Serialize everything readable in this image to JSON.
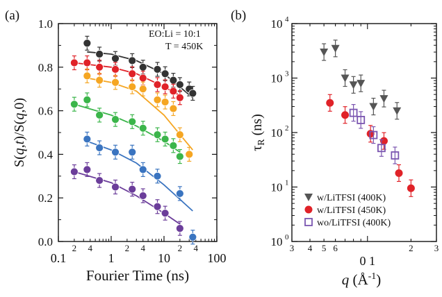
{
  "chart_data": [
    {
      "type": "scatter",
      "panel_label": "(a)",
      "xlabel": "Fourier Time (ns)",
      "ylabel": "S(q,t)/S(q,0)",
      "xscale": "log",
      "xlim": [
        0.1,
        100
      ],
      "ylim": [
        0.0,
        1.0
      ],
      "yticks": [
        "0.0",
        "0.2",
        "0.4",
        "0.6",
        "0.8",
        "1.0"
      ],
      "xticks_major": [
        "0.1",
        "1",
        "10",
        "100"
      ],
      "xticks_minor_labels": [
        "2",
        "4",
        "2",
        "4",
        "2",
        "4",
        "2",
        "4"
      ],
      "annotation": [
        "EO:Li = 10:1",
        "T = 450K"
      ],
      "legend": "none",
      "series": [
        {
          "color": "#333333",
          "x": [
            0.35,
            0.6,
            1.2,
            2.5,
            4.0,
            7.5,
            10.5,
            15,
            20,
            30,
            35
          ],
          "y": [
            0.91,
            0.86,
            0.84,
            0.83,
            0.8,
            0.79,
            0.77,
            0.74,
            0.72,
            0.7,
            0.68
          ],
          "fit": [
            [
              0.35,
              0.87
            ],
            [
              1,
              0.86
            ],
            [
              3,
              0.83
            ],
            [
              10,
              0.77
            ],
            [
              35,
              0.66
            ]
          ]
        },
        {
          "color": "#e02228",
          "x": [
            0.2,
            0.35,
            0.6,
            1.2,
            2.5,
            4.0,
            7.5,
            10.5,
            15,
            20
          ],
          "y": [
            0.82,
            0.82,
            0.8,
            0.79,
            0.77,
            0.75,
            0.72,
            0.71,
            0.69,
            0.66
          ],
          "fit": [
            [
              0.2,
              0.82
            ],
            [
              1,
              0.8
            ],
            [
              3,
              0.77
            ],
            [
              10,
              0.71
            ],
            [
              20,
              0.67
            ]
          ]
        },
        {
          "color": "#f5a623",
          "x": [
            0.35,
            0.6,
            1.2,
            2.5,
            4.0,
            7.5,
            10.5,
            15,
            20,
            30
          ],
          "y": [
            0.76,
            0.74,
            0.73,
            0.71,
            0.7,
            0.65,
            0.64,
            0.61,
            0.49,
            0.4
          ],
          "fit": [
            [
              0.35,
              0.75
            ],
            [
              1,
              0.73
            ],
            [
              3,
              0.69
            ],
            [
              10,
              0.58
            ],
            [
              35,
              0.42
            ]
          ]
        },
        {
          "color": "#3bb54a",
          "x": [
            0.2,
            0.35,
            0.6,
            1.2,
            2.5,
            4.0,
            7.5,
            10.5,
            15,
            20
          ],
          "y": [
            0.63,
            0.65,
            0.58,
            0.56,
            0.55,
            0.52,
            0.49,
            0.47,
            0.44,
            0.39
          ],
          "fit": [
            [
              0.2,
              0.63
            ],
            [
              1,
              0.58
            ],
            [
              3,
              0.53
            ],
            [
              10,
              0.46
            ],
            [
              20,
              0.41
            ]
          ]
        },
        {
          "color": "#3a74c0",
          "x": [
            0.35,
            0.6,
            1.2,
            2.5,
            4.0,
            7.5,
            20,
            35
          ],
          "y": [
            0.47,
            0.43,
            0.41,
            0.41,
            0.33,
            0.3,
            0.22,
            0.02
          ],
          "fit": [
            [
              0.35,
              0.46
            ],
            [
              1,
              0.42
            ],
            [
              3,
              0.36
            ],
            [
              10,
              0.26
            ],
            [
              35,
              0.14
            ]
          ]
        },
        {
          "color": "#6b3d9a",
          "x": [
            0.2,
            0.35,
            0.6,
            1.2,
            2.5,
            4.0,
            7.5,
            10.5,
            20
          ],
          "y": [
            0.32,
            0.33,
            0.28,
            0.25,
            0.24,
            0.21,
            0.16,
            0.13,
            0.06
          ],
          "fit": [
            [
              0.2,
              0.32
            ],
            [
              1,
              0.27
            ],
            [
              3,
              0.21
            ],
            [
              10,
              0.13
            ],
            [
              20,
              0.08
            ]
          ]
        }
      ]
    },
    {
      "type": "scatter",
      "panel_label": "(b)",
      "xlabel": "q (Å-1)",
      "ylabel": "τR (ns)",
      "xscale": "log",
      "yscale": "log",
      "xlim": [
        0.03,
        0.3
      ],
      "ylim": [
        1,
        10000
      ],
      "yticks": [
        "10^0",
        "10^1",
        "10^2",
        "10^3",
        "10^4"
      ],
      "xticks_labels": [
        "3",
        "4",
        "5",
        "6",
        "0 1",
        "2",
        "3"
      ],
      "legend": "bottom-left",
      "series": [
        {
          "name": "w/LiTFSI (400K)",
          "marker": "triangle-down",
          "color": "#555555",
          "x": [
            0.05,
            0.06,
            0.07,
            0.08,
            0.09,
            0.11,
            0.13,
            0.16
          ],
          "y": [
            3000,
            3500,
            1000,
            750,
            800,
            300,
            420,
            250
          ]
        },
        {
          "name": "w/LiTFSI (450K)",
          "marker": "circle",
          "color": "#e02228",
          "x": [
            0.055,
            0.07,
            0.105,
            0.13,
            0.165,
            0.2
          ],
          "y": [
            350,
            210,
            95,
            70,
            18,
            9.5
          ]
        },
        {
          "name": "wo/LiTFSI (400K)",
          "marker": "square-open",
          "color": "#7a55b0",
          "x": [
            0.08,
            0.09,
            0.11,
            0.125,
            0.155
          ],
          "y": [
            230,
            170,
            90,
            52,
            38
          ]
        }
      ]
    }
  ]
}
